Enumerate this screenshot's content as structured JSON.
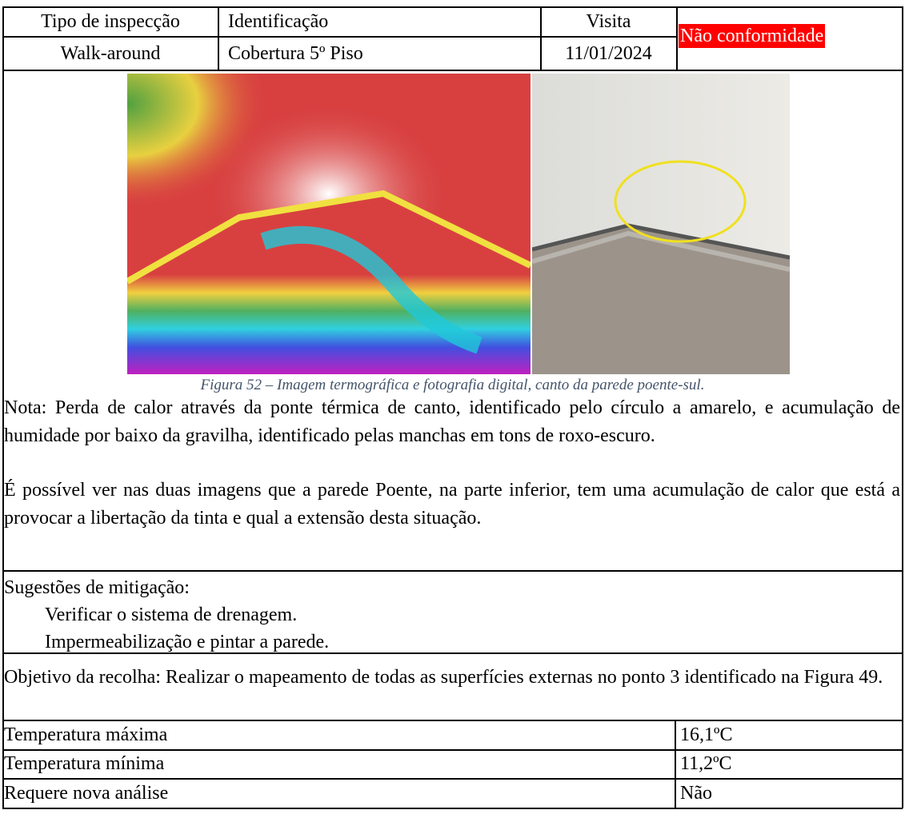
{
  "header": {
    "columns": [
      "Tipo de inspecção",
      "Identificação",
      "Visita"
    ],
    "values": [
      "Walk-around",
      "Cobertura 5º Piso",
      "11/01/2024"
    ],
    "status": "Não conformidade"
  },
  "figure": {
    "caption": "Figura 52 – Imagem termográfica e fotografia digital, canto da parede poente-sul."
  },
  "note": {
    "paragraphs": [
      "Nota: Perda de calor através da ponte térmica de canto, identificado pelo círculo a amarelo, e acumulação de humidade por baixo da gravilha, identificado pelas manchas em tons de roxo-escuro.",
      "É possível ver nas duas imagens que a parede Poente, na parte inferior, tem uma acumulação de calor que está a provocar a libertação da tinta e qual a extensão desta situação."
    ]
  },
  "mitigation": {
    "title": "Sugestões de mitigação:",
    "items": [
      "Verificar o sistema de drenagem.",
      "Impermeabilização e pintar a parede."
    ]
  },
  "objective": "Objetivo da recolha: Realizar o mapeamento de todas as superfícies externas no ponto 3 identificado na Figura 49.",
  "measurements": {
    "rows": [
      [
        "Temperatura máxima",
        "16,1ºC"
      ],
      [
        "Temperatura mínima",
        "11,2ºC"
      ],
      [
        "Requere nova análise",
        "Não"
      ]
    ]
  }
}
